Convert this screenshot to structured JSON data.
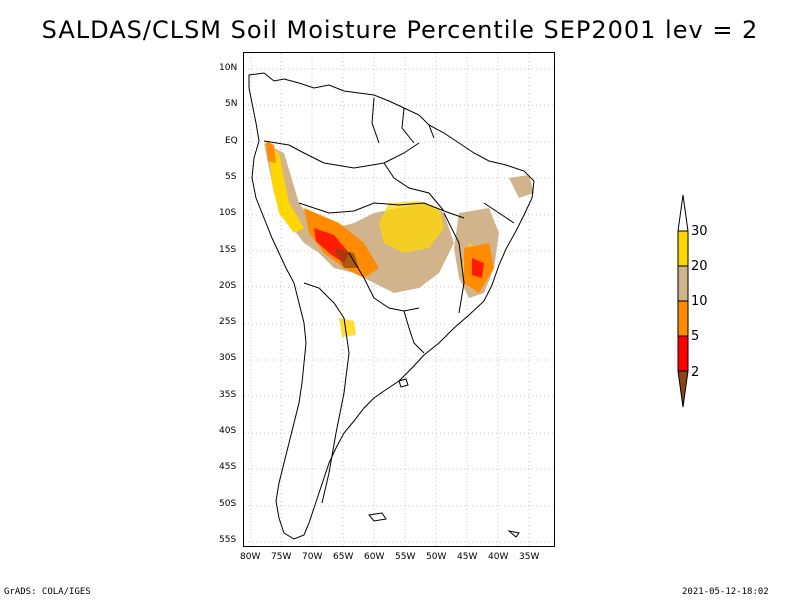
{
  "title": "SALDAS/CLSM Soil Moisture Percentile SEP2001 lev = 2",
  "footer": {
    "left": "GrADS: COLA/IGES",
    "right": "2021-05-12-18:02"
  },
  "map": {
    "lon_labels": [
      "80W",
      "75W",
      "70W",
      "65W",
      "60W",
      "55W",
      "50W",
      "45W",
      "40W",
      "35W"
    ],
    "lat_labels": [
      "10N",
      "5N",
      "EQ",
      "5S",
      "10S",
      "15S",
      "20S",
      "25S",
      "30S",
      "35S",
      "40S",
      "45S",
      "50S",
      "55S"
    ]
  },
  "legend": {
    "levels": [
      "2",
      "5",
      "10",
      "20",
      "30"
    ],
    "colors": {
      "below2": "#8B4513",
      "c2_5": "#FF0000",
      "c5_10": "#FF8C00",
      "c10_20": "#D2B48C",
      "c20_30": "#FFD700",
      "above30": "#FFFFFF"
    }
  }
}
